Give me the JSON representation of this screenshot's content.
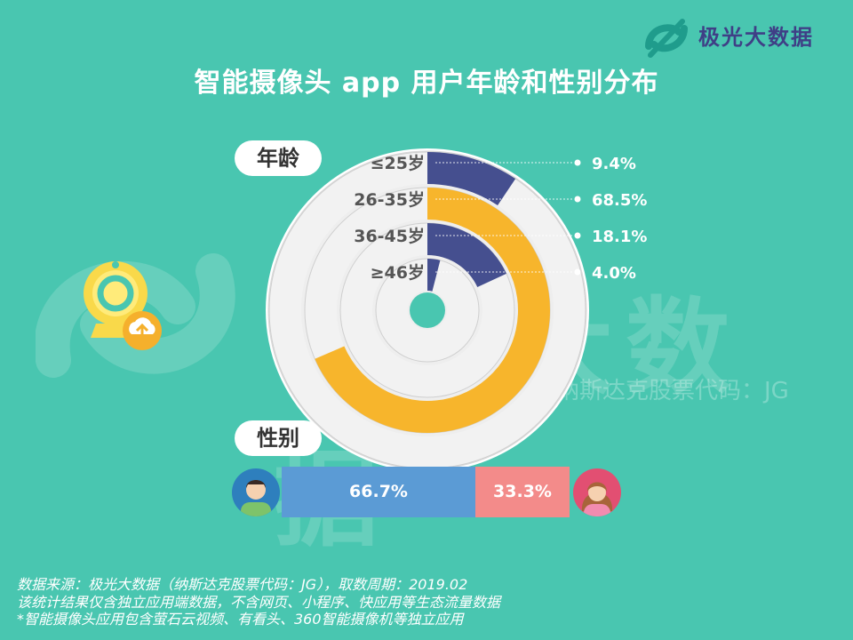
{
  "brand": {
    "name": "极光大数据"
  },
  "title": "智能摄像头 app 用户年龄和性别分布",
  "watermark": {
    "text": "极光大数据",
    "sub": "纳斯达克股票代码：JG"
  },
  "section_labels": {
    "age": "年龄",
    "gender": "性别"
  },
  "colors": {
    "background": "#49c6b0",
    "navy": "#454f8f",
    "yellow": "#f7b52c",
    "track": "#eeeeee",
    "male": "#5b9bd5",
    "female": "#f38b8a"
  },
  "chart_data": [
    {
      "type": "donut",
      "title": "",
      "rings": [
        {
          "label": "≤25岁",
          "value": 9.4,
          "value_label": "9.4%"
        },
        {
          "label": "26-35岁",
          "value": 68.5,
          "value_label": "68.5%"
        },
        {
          "label": "36-45岁",
          "value": 18.1,
          "value_label": "18.1%"
        },
        {
          "label": "≥46岁",
          "value": 4.0,
          "value_label": "4.0%"
        }
      ]
    },
    {
      "type": "bar",
      "orientation": "stacked-horizontal",
      "categories": [
        "男",
        "女"
      ],
      "values": [
        66.7,
        33.3
      ],
      "value_labels": [
        "66.7%",
        "33.3%"
      ]
    }
  ],
  "notes": [
    "数据来源：极光大数据（纳斯达克股票代码：JG），取数周期：2019.02",
    "该统计结果仅含独立应用端数据，不含网页、小程序、快应用等生态流量数据",
    "*智能摄像头应用包含萤石云视频、有看头、360智能摄像机等独立应用"
  ]
}
